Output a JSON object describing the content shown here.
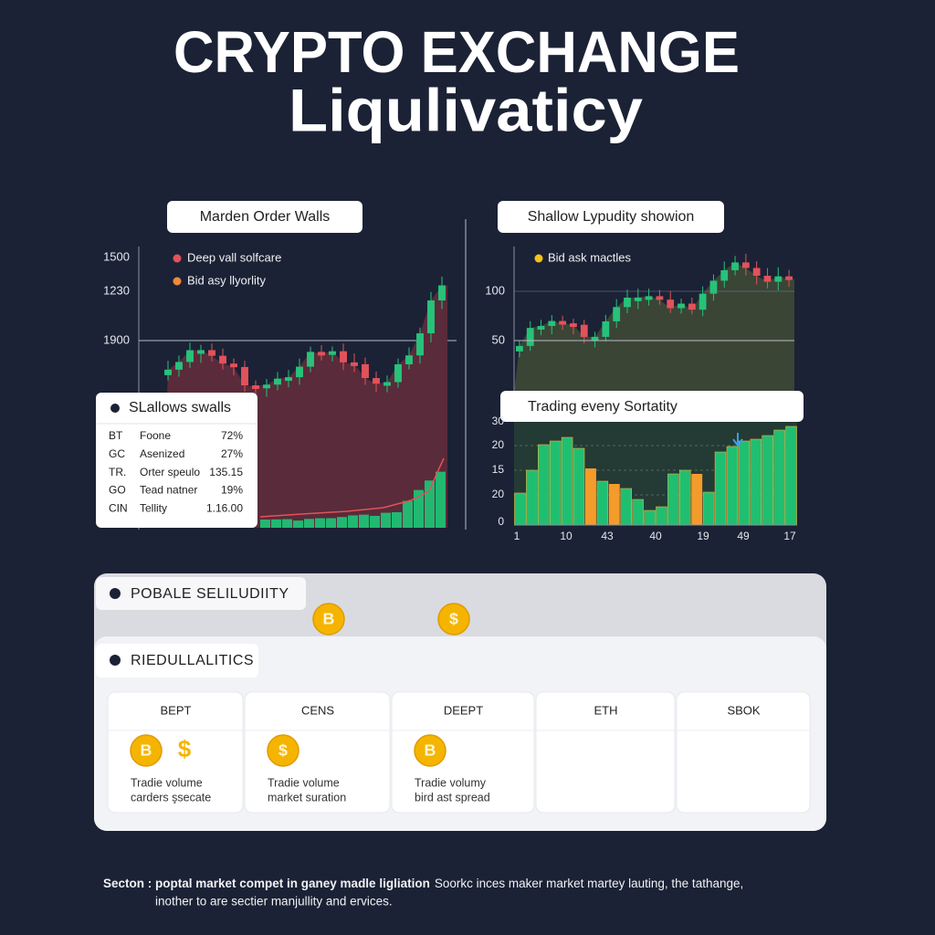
{
  "title_line1": "CRYPTO EXCHANGE",
  "title_line2": "Liqulivaticy",
  "left_panel": {
    "label": "Marden Order Walls",
    "y_axis_labels": [
      "1500",
      "1230",
      "1900"
    ],
    "legend": [
      "Deep vall solfcare",
      "Bid asy llyorlity"
    ]
  },
  "table": {
    "title": "SLallows swalls",
    "rows": [
      [
        "BT",
        "Foone",
        "72%"
      ],
      [
        "GC",
        "Asenized",
        "27%"
      ],
      [
        "TR.",
        "Orter speulo",
        "135.15"
      ],
      [
        "GO",
        "Tead natner",
        "19%"
      ],
      [
        "CIN",
        "Tellity",
        "1.16.00"
      ]
    ]
  },
  "right_panel": {
    "label": "Shallow Lypudity showion",
    "y_axis_labels": [
      "100",
      "50"
    ],
    "legend": [
      "Bid ask mactles"
    ]
  },
  "bar_panel": {
    "label": "Trading eveny Sortatity",
    "y_axis_labels": [
      "30",
      "20",
      "15",
      "20",
      "0"
    ],
    "x_axis_labels": [
      "1",
      "10",
      "43",
      "40",
      "19",
      "49",
      "17"
    ]
  },
  "section": {
    "title": "POBALE SELILUDIITY",
    "coins": [
      "B",
      "$"
    ]
  },
  "subsection": {
    "title": "RIEDULLALITICS",
    "cards": [
      {
        "header": "BEPT",
        "icons": [
          {
            "symbol": "B",
            "style": "coin"
          },
          {
            "symbol": "$",
            "style": "plain"
          }
        ],
        "lines": [
          "Tradie volume",
          "carders şsecate"
        ]
      },
      {
        "header": "CENS",
        "icons": [
          {
            "symbol": "$",
            "style": "coin"
          }
        ],
        "lines": [
          "Tradie volume",
          "market suration"
        ]
      },
      {
        "header": "DEEPT",
        "icons": [
          {
            "symbol": "B",
            "style": "coin"
          }
        ],
        "lines": [
          "Tradie volumy",
          "bird ast spread"
        ]
      },
      {
        "header": "ETH"
      },
      {
        "header": "SBOK"
      }
    ]
  },
  "footer": {
    "line1_bold": "Secton : poptal market compet in ganey madle ligliation",
    "line1": "Soorkc inces maker market martey lauting, the tathange,",
    "line2": "inother to are sectier manjullity and ervices."
  }
}
